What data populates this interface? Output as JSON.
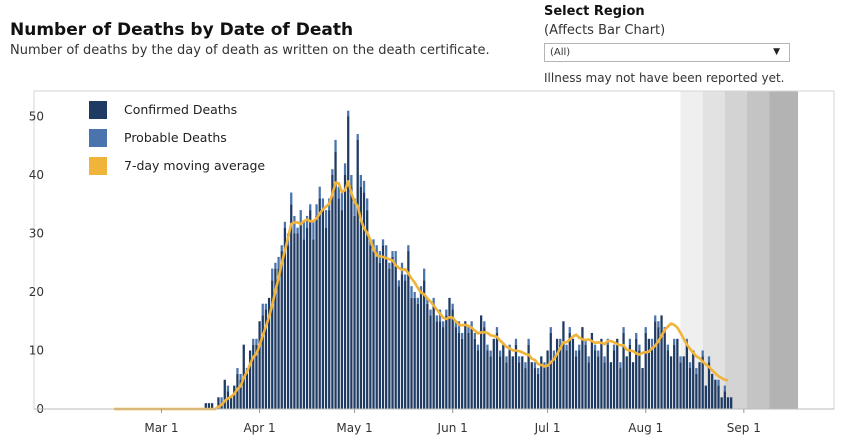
{
  "header": {
    "title": "Number of Deaths by Date of Death",
    "subtitle": "Number of deaths by the day of death as written on the death certificate."
  },
  "region_filter": {
    "title": "Select Region",
    "subtitle": "(Affects Bar Chart)",
    "selected": "(All)",
    "note": "Illness may not have been reported yet."
  },
  "colors": {
    "confirmed": "#1f3a63",
    "probable": "#4a74ad",
    "moving_average": "#f0b43a",
    "shade_levels": [
      "#efefef",
      "#e2e2e2",
      "#d3d3d3",
      "#c4c4c4",
      "#b3b3b3"
    ]
  },
  "chart_data": {
    "type": "bar",
    "x_start": "2020-02-15",
    "y_ticks": [
      0,
      10,
      20,
      30,
      40,
      50
    ],
    "ylim": [
      0,
      54
    ],
    "x_ticks": [
      {
        "label": "Mar 1",
        "date": "2020-03-01"
      },
      {
        "label": "Apr 1",
        "date": "2020-04-01"
      },
      {
        "label": "May 1",
        "date": "2020-05-01"
      },
      {
        "label": "Jun 1",
        "date": "2020-06-01"
      },
      {
        "label": "Jul 1",
        "date": "2020-07-01"
      },
      {
        "label": "Aug 1",
        "date": "2020-08-01"
      },
      {
        "label": "Sep 1",
        "date": "2020-09-01"
      }
    ],
    "legend": [
      "Confirmed Deaths",
      "Probable Deaths",
      "7-day moving average"
    ],
    "grid": false,
    "incomplete_reporting_start": "2020-08-12",
    "series": [
      {
        "name": "Confirmed Deaths",
        "values": [
          0,
          0,
          0,
          0,
          0,
          0,
          0,
          0,
          0,
          0,
          0,
          0,
          0,
          0,
          0,
          0,
          0,
          0,
          0,
          0,
          0,
          0,
          0,
          0,
          0,
          0,
          0,
          0,
          0,
          1,
          1,
          1,
          0,
          2,
          1,
          5,
          3,
          2,
          4,
          6,
          5,
          11,
          6,
          10,
          11,
          11,
          15,
          16,
          17,
          19,
          22,
          24,
          24,
          27,
          31,
          28,
          35,
          30,
          30,
          32,
          29,
          31,
          34,
          29,
          33,
          36,
          34,
          31,
          34,
          40,
          44,
          36,
          34,
          40,
          50,
          38,
          33,
          46,
          38,
          37,
          34,
          28,
          27,
          26,
          25,
          28,
          26,
          24,
          26,
          25,
          21,
          23,
          22,
          27,
          19,
          19,
          18,
          20,
          22,
          18,
          16,
          18,
          15,
          15,
          14,
          16,
          19,
          17,
          14,
          13,
          12,
          15,
          13,
          14,
          12,
          10,
          16,
          14,
          10,
          9,
          12,
          13,
          9,
          11,
          8,
          10,
          9,
          11,
          8,
          9,
          7,
          11,
          8,
          7,
          6,
          9,
          7,
          10,
          13,
          9,
          12,
          11,
          15,
          10,
          13,
          12,
          9,
          10,
          14,
          11,
          8,
          13,
          10,
          9,
          12,
          8,
          11,
          8,
          10,
          12,
          7,
          13,
          9,
          11,
          8,
          12,
          10,
          7,
          13,
          12,
          10,
          15,
          14,
          16,
          13,
          10,
          9,
          11,
          12,
          8,
          9,
          11,
          7,
          10,
          6,
          8,
          9,
          4,
          8,
          6,
          5,
          4,
          2,
          3,
          2,
          2
        ]
      },
      {
        "name": "Probable Deaths",
        "values": [
          0,
          0,
          0,
          0,
          0,
          0,
          0,
          0,
          0,
          0,
          0,
          0,
          0,
          0,
          0,
          0,
          0,
          0,
          0,
          0,
          0,
          0,
          0,
          0,
          0,
          0,
          0,
          0,
          0,
          0,
          0,
          0,
          0,
          0,
          1,
          0,
          1,
          0,
          0,
          1,
          1,
          0,
          1,
          0,
          1,
          1,
          0,
          2,
          1,
          0,
          2,
          1,
          2,
          1,
          1,
          2,
          2,
          3,
          1,
          2,
          3,
          2,
          1,
          3,
          2,
          2,
          2,
          3,
          2,
          1,
          2,
          2,
          3,
          2,
          1,
          2,
          3,
          1,
          2,
          2,
          2,
          1,
          2,
          2,
          2,
          1,
          2,
          1,
          1,
          2,
          1,
          2,
          1,
          1,
          2,
          1,
          1,
          1,
          2,
          1,
          1,
          1,
          1,
          2,
          1,
          1,
          0,
          1,
          1,
          2,
          1,
          0,
          1,
          1,
          1,
          1,
          0,
          1,
          1,
          1,
          0,
          1,
          1,
          0,
          1,
          1,
          0,
          1,
          1,
          0,
          1,
          1,
          0,
          1,
          1,
          0,
          1,
          0,
          1,
          1,
          0,
          1,
          0,
          1,
          1,
          0,
          1,
          1,
          0,
          1,
          1,
          0,
          1,
          1,
          0,
          1,
          1,
          0,
          1,
          0,
          1,
          1,
          0,
          1,
          0,
          1,
          1,
          0,
          1,
          0,
          2,
          1,
          1,
          0,
          1,
          1,
          0,
          1,
          0,
          1,
          0,
          1,
          1,
          0,
          1,
          0,
          1,
          0,
          1,
          0,
          0,
          1,
          0,
          1,
          0
        ]
      },
      {
        "name": "7-day moving average",
        "values": [
          0,
          0,
          0,
          0,
          0,
          0,
          0,
          0,
          0,
          0,
          0,
          0,
          0,
          0,
          0,
          0,
          0,
          0,
          0,
          0,
          0,
          0,
          0,
          0,
          0,
          0,
          0,
          0,
          0,
          0,
          0,
          0,
          0,
          0.4,
          0.7,
          1.4,
          1.8,
          2.1,
          2.6,
          3.4,
          3.9,
          5.4,
          6.3,
          7.7,
          8.9,
          9.4,
          10.9,
          12.6,
          14.1,
          15.8,
          17.8,
          20.2,
          22.4,
          24.9,
          27.1,
          29.3,
          31.6,
          31.9,
          31.9,
          31.6,
          32.1,
          32.4,
          32.1,
          32.1,
          32.6,
          33.4,
          34.1,
          34.6,
          35.1,
          36.7,
          38.7,
          38.6,
          37.1,
          37.4,
          38.9,
          36.9,
          35.4,
          34.7,
          32.3,
          30.9,
          30.1,
          28.9,
          27.3,
          26.3,
          26.1,
          26.0,
          25.8,
          25.6,
          25.4,
          24.6,
          24.1,
          23.8,
          23.9,
          23.2,
          22.3,
          21.6,
          20.7,
          19.9,
          19.6,
          18.9,
          18.4,
          17.7,
          17.0,
          16.3,
          15.6,
          15.4,
          15.7,
          15.6,
          15.0,
          14.4,
          14.3,
          14.4,
          14.2,
          13.9,
          13.4,
          12.9,
          13.1,
          13.1,
          13.0,
          12.6,
          12.5,
          12.3,
          11.7,
          11.2,
          10.6,
          10.4,
          10.0,
          10.0,
          9.9,
          9.7,
          9.4,
          9.3,
          8.6,
          8.4,
          7.7,
          7.5,
          7.3,
          7.4,
          8.0,
          8.5,
          9.4,
          10.4,
          11.4,
          11.4,
          11.9,
          12.4,
          12.7,
          12.2,
          11.9,
          11.8,
          11.9,
          11.6,
          11.3,
          11.4,
          11.3,
          11.1,
          11.6,
          11.6,
          11.4,
          11.1,
          10.9,
          10.9,
          10.1,
          10.0,
          9.9,
          9.5,
          9.3,
          9.6,
          9.7,
          9.8,
          10.4,
          10.8,
          11.6,
          12.5,
          13.5,
          14.1,
          14.6,
          14.4,
          13.9,
          13.0,
          12.0,
          11.0,
          10.3,
          9.6,
          9.0,
          8.7,
          8.1,
          7.6,
          7.2,
          6.6,
          6.1,
          5.6,
          5.3,
          5.0,
          4.9
        ]
      }
    ]
  }
}
